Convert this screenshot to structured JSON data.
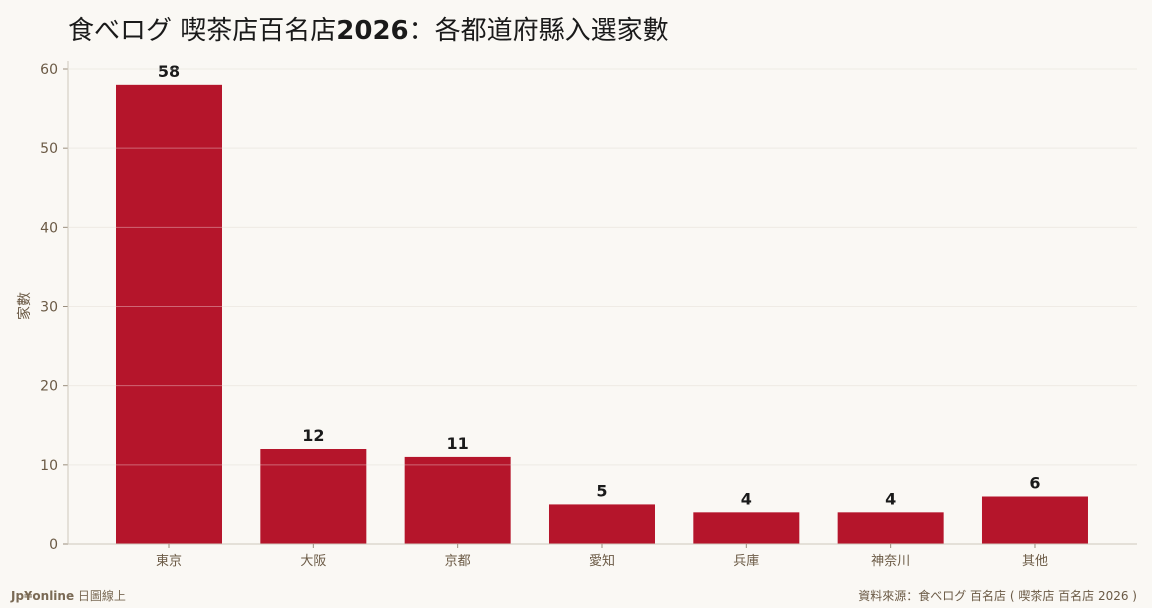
{
  "header": {
    "title_part1": "食べログ 喫茶店百名店",
    "title_year": "2026",
    "title_part2": "：各都道府縣入選家數"
  },
  "footer": {
    "brand_bold": "Jp¥online",
    "brand_rest": " 日圖線上",
    "source": "資料來源：食べログ 百名店 ( 喫茶店 百名店 2026 )"
  },
  "colors": {
    "bar": "#b5152b",
    "background": "#faf8f4",
    "grid": "#e6e1d8",
    "axis_text": "#6b5a45"
  },
  "chart_data": {
    "type": "bar",
    "categories": [
      "東京",
      "大阪",
      "京都",
      "愛知",
      "兵庫",
      "神奈川",
      "其他"
    ],
    "values": [
      58,
      12,
      11,
      5,
      4,
      4,
      6
    ],
    "ylabel": "家數",
    "xlabel": "",
    "ylim": [
      0,
      60
    ],
    "yticks": [
      0,
      10,
      20,
      30,
      40,
      50,
      60
    ],
    "grid": true,
    "data_labels": true
  }
}
